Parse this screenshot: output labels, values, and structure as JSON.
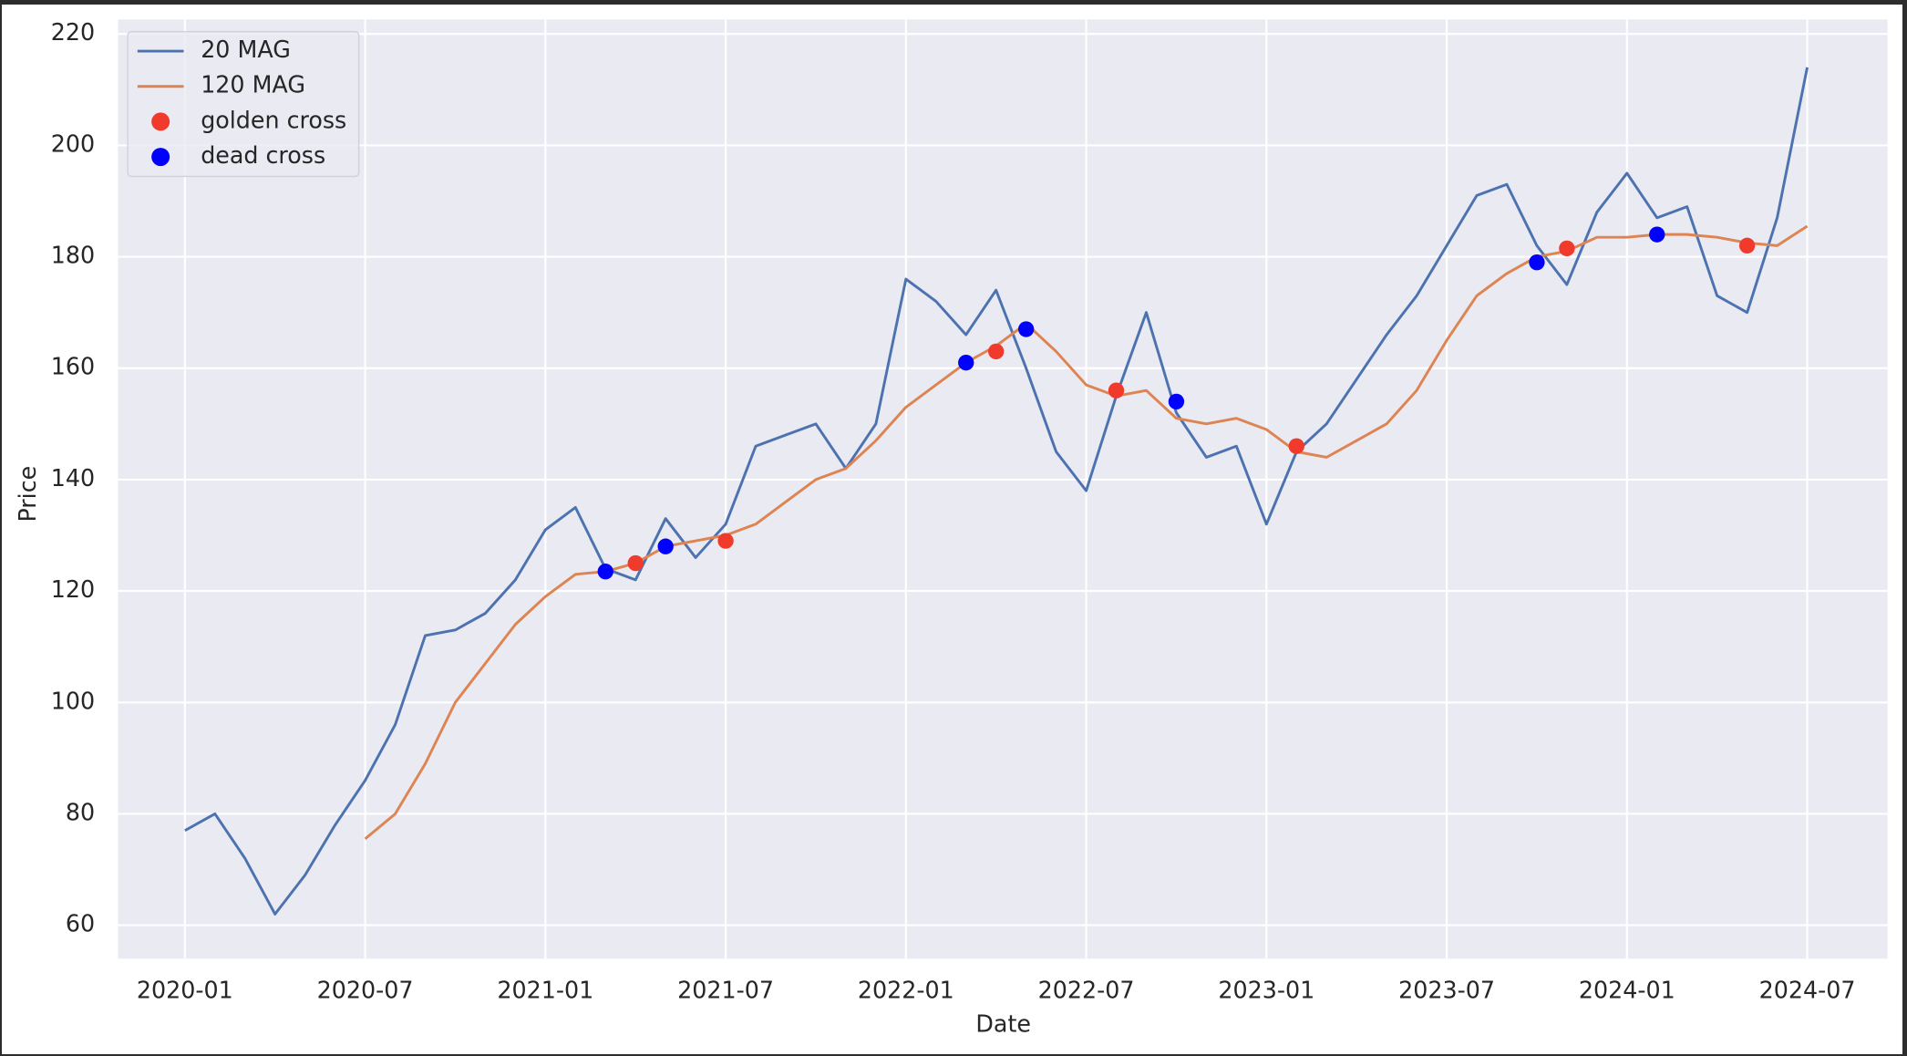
{
  "chart_data": {
    "type": "line",
    "xlabel": "Date",
    "ylabel": "Price",
    "x": [
      "2020-01",
      "2020-02",
      "2020-03",
      "2020-04",
      "2020-05",
      "2020-06",
      "2020-07",
      "2020-08",
      "2020-09",
      "2020-10",
      "2020-11",
      "2020-12",
      "2021-01",
      "2021-02",
      "2021-03",
      "2021-04",
      "2021-05",
      "2021-06",
      "2021-07",
      "2021-08",
      "2021-09",
      "2021-10",
      "2021-11",
      "2021-12",
      "2022-01",
      "2022-02",
      "2022-03",
      "2022-04",
      "2022-05",
      "2022-06",
      "2022-07",
      "2022-08",
      "2022-09",
      "2022-10",
      "2022-11",
      "2022-12",
      "2023-01",
      "2023-02",
      "2023-03",
      "2023-04",
      "2023-05",
      "2023-06",
      "2023-07",
      "2023-08",
      "2023-09",
      "2023-10",
      "2023-11",
      "2023-12",
      "2024-01",
      "2024-02",
      "2024-03",
      "2024-04",
      "2024-05",
      "2024-06",
      "2024-07"
    ],
    "series": [
      {
        "name": "20 MAG",
        "type": "line",
        "color": "#4c72b0",
        "values": [
          77,
          80,
          72,
          62,
          69,
          78,
          86,
          96,
          112,
          113,
          116,
          122,
          131,
          135,
          124,
          122,
          133,
          126,
          132,
          146,
          148,
          150,
          142,
          150,
          176,
          172,
          166,
          174,
          160,
          145,
          138,
          155,
          170,
          152,
          144,
          146,
          132,
          145,
          150,
          158,
          166,
          173,
          182,
          191,
          193,
          182,
          175,
          188,
          195,
          187,
          189,
          173,
          170,
          187,
          214
        ]
      },
      {
        "name": "120 MAG",
        "type": "line",
        "color": "#dd8452",
        "values": [
          null,
          null,
          null,
          null,
          null,
          null,
          75.5,
          80,
          89,
          100,
          107,
          114,
          119,
          123,
          123.5,
          125,
          128,
          129,
          130,
          132,
          136,
          140,
          142,
          147,
          153,
          157,
          161,
          164,
          168,
          163,
          157,
          155,
          156,
          151,
          150,
          151,
          149,
          145,
          144,
          147,
          150,
          156,
          165,
          173,
          177,
          180,
          181,
          183.5,
          183.5,
          184,
          184,
          183.5,
          182.5,
          182,
          185.5
        ]
      },
      {
        "name": "golden cross",
        "type": "scatter",
        "color": "#f03a2c",
        "x": [
          "2021-04",
          "2021-07",
          "2022-04",
          "2022-08",
          "2023-02",
          "2023-11",
          "2024-05"
        ],
        "values": [
          125,
          129,
          163,
          156,
          146,
          181.5,
          182
        ]
      },
      {
        "name": "dead cross",
        "type": "scatter",
        "color": "#0000ff",
        "x": [
          "2021-03",
          "2021-05",
          "2022-03",
          "2022-05",
          "2022-10",
          "2023-10",
          "2024-02"
        ],
        "values": [
          123.5,
          128,
          161,
          167,
          154,
          179,
          184
        ]
      }
    ],
    "xticks": [
      "2020-01",
      "2020-07",
      "2021-01",
      "2021-07",
      "2022-01",
      "2022-07",
      "2023-01",
      "2023-07",
      "2024-01",
      "2024-07"
    ],
    "ylim": [
      54,
      222.6
    ],
    "yticks": [
      60,
      80,
      100,
      120,
      140,
      160,
      180,
      200,
      220
    ],
    "grid": true,
    "legend": "upper left"
  }
}
